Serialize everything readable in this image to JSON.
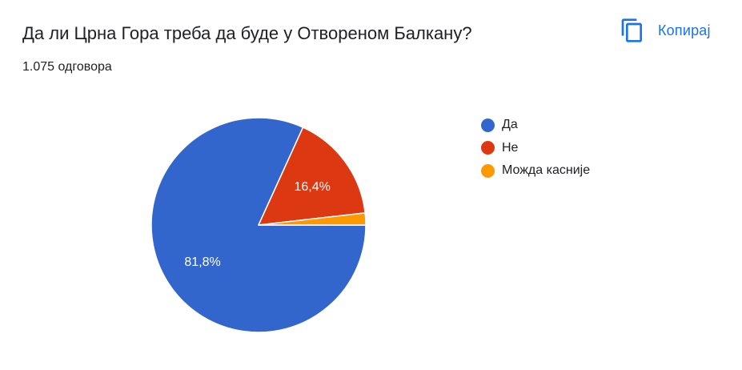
{
  "header": {
    "question": "Да ли Црна Гора треба да буде у Отвореном Балкану?",
    "responses": "1.075 одговора",
    "copy_label": "Копирај",
    "copy_icon": "copy-icon"
  },
  "colors": {
    "accent": "#1a73e8",
    "text": "#202124"
  },
  "chart_data": {
    "type": "pie",
    "title": "",
    "legend_position": "right",
    "slices": [
      {
        "label": "Да",
        "value": 81.8,
        "display": "81,8%",
        "color": "#3366cc"
      },
      {
        "label": "Не",
        "value": 16.4,
        "display": "16,4%",
        "color": "#dc3912"
      },
      {
        "label": "Можда касније",
        "value": 1.8,
        "display": "",
        "color": "#ff9900"
      }
    ]
  }
}
